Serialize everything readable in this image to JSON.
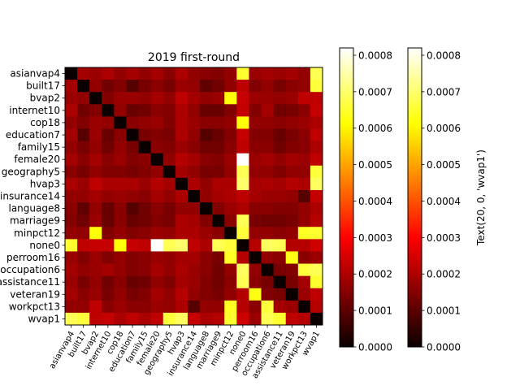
{
  "chart_data": {
    "type": "heatmap",
    "title": "2019 first-round",
    "categories": [
      "asianvap4",
      "built17",
      "bvap2",
      "internet10",
      "cop18",
      "education7",
      "family15",
      "female20",
      "geography5",
      "hvap3",
      "insurance14",
      "language8",
      "marriage9",
      "minpct12",
      "none0",
      "perroom16",
      "occupation6",
      "assistance11",
      "veteran19",
      "workpct13",
      "wvap1"
    ],
    "x_tick_labels": [
      "asianvap4",
      "built17",
      "bvap2",
      "internet10",
      "cop18",
      "education7",
      "family15",
      "female20",
      "geography5",
      "hvap3",
      "insurance14",
      "language8",
      "marriage9",
      "minpct12",
      "none0",
      "perroom16",
      "occupation6",
      "assistance11",
      "veteran19",
      "workpct13",
      "wvap1"
    ],
    "y_tick_labels": [
      "asianvap4",
      "built17",
      "bvap2",
      "internet10",
      "cop18",
      "education7",
      "family15",
      "female20",
      "geography5",
      "hvap3",
      "insurance14",
      "language8",
      "marriage9",
      "minpct12",
      "none0",
      "perroom16",
      "occupation6",
      "assistance11",
      "veteran19",
      "workpct13",
      "wvap1"
    ],
    "matrix": [
      [
        0.0,
        0.00018,
        0.00017,
        0.00019,
        0.00016,
        0.00018,
        0.00016,
        0.00018,
        0.00015,
        0.00019,
        0.00016,
        0.00015,
        0.00014,
        0.00016,
        0.00065,
        0.00017,
        0.00018,
        0.00017,
        0.00018,
        0.00016,
        0.00068
      ],
      [
        0.00018,
        0.0,
        0.00016,
        0.00012,
        0.00014,
        9e-05,
        0.00013,
        0.00015,
        0.00013,
        0.00017,
        0.00016,
        0.0001,
        0.00012,
        0.00016,
        0.00021,
        0.00014,
        0.00016,
        0.00013,
        0.00015,
        0.00016,
        0.00066
      ],
      [
        0.00017,
        0.00016,
        0.0,
        0.00014,
        0.00017,
        0.00017,
        0.00016,
        0.00018,
        0.00016,
        0.00021,
        0.00018,
        0.00016,
        0.00017,
        0.00062,
        0.00022,
        0.00017,
        0.00017,
        0.00016,
        0.00017,
        0.00021,
        0.00021
      ],
      [
        0.00019,
        0.00012,
        0.00014,
        0.0,
        0.00016,
        0.00011,
        0.00012,
        0.00015,
        0.00014,
        0.00019,
        0.00016,
        0.00011,
        0.00011,
        0.00014,
        0.00022,
        0.00014,
        0.00018,
        0.00012,
        0.00013,
        0.00015,
        0.00022
      ],
      [
        0.00016,
        0.00014,
        0.00017,
        0.00016,
        0.0,
        0.00015,
        0.00016,
        0.00017,
        0.00014,
        0.00019,
        0.00017,
        0.00015,
        0.00015,
        0.00016,
        0.00062,
        0.00016,
        0.00016,
        0.00015,
        0.00016,
        0.00017,
        0.00019
      ],
      [
        0.00018,
        9e-05,
        0.00017,
        0.00011,
        0.00015,
        0.0,
        0.00013,
        0.00014,
        0.00013,
        0.00019,
        0.00016,
        9e-05,
        0.00011,
        0.00014,
        0.00022,
        0.00014,
        0.00014,
        0.00011,
        0.00013,
        0.00015,
        0.00021
      ],
      [
        0.00016,
        0.00013,
        0.00016,
        0.00012,
        0.00016,
        0.00013,
        0.0,
        0.00015,
        0.00014,
        0.00017,
        0.00015,
        0.00012,
        0.00012,
        0.00015,
        0.00021,
        0.00015,
        0.00015,
        0.00012,
        0.00014,
        0.00015,
        0.00019
      ],
      [
        0.00018,
        0.00015,
        0.00018,
        0.00015,
        0.00017,
        0.00014,
        0.00015,
        0.0,
        0.00016,
        0.0002,
        0.00018,
        0.00015,
        0.00014,
        0.00017,
        0.00082,
        0.00017,
        0.00018,
        0.00016,
        0.00018,
        0.00017,
        0.00021
      ],
      [
        0.00015,
        0.00013,
        0.00016,
        0.00014,
        0.00014,
        0.00013,
        0.00014,
        0.00016,
        0.0,
        0.00018,
        0.00016,
        0.00013,
        0.00013,
        0.00016,
        0.00068,
        0.00016,
        0.00016,
        0.00014,
        0.00016,
        0.00016,
        0.00066
      ],
      [
        0.00019,
        0.00017,
        0.00021,
        0.00019,
        0.00019,
        0.00019,
        0.00017,
        0.0002,
        0.00018,
        0.0,
        0.00019,
        0.00016,
        0.00019,
        0.00019,
        0.0007,
        0.00018,
        0.00019,
        0.00018,
        0.0002,
        0.00019,
        0.00069
      ],
      [
        0.00016,
        0.00016,
        0.00018,
        0.00016,
        0.00017,
        0.00016,
        0.00015,
        0.00018,
        0.00016,
        0.00019,
        0.0,
        0.00016,
        0.00018,
        0.00019,
        0.00021,
        0.00018,
        0.00017,
        0.00017,
        0.00016,
        9e-05,
        0.00022
      ],
      [
        0.00015,
        0.0001,
        0.00016,
        0.00011,
        0.00015,
        9e-05,
        0.00012,
        0.00015,
        0.00013,
        0.00016,
        0.00016,
        0.0,
        0.00014,
        0.00017,
        0.00019,
        0.00015,
        0.00015,
        0.00014,
        0.00014,
        0.00016,
        0.00019
      ],
      [
        0.00014,
        0.00012,
        0.00017,
        0.00011,
        0.00015,
        0.00011,
        0.00012,
        0.00014,
        0.00013,
        0.00019,
        0.00018,
        0.00014,
        0.0,
        0.00015,
        0.00068,
        0.00013,
        0.00012,
        0.00012,
        0.00013,
        0.00016,
        0.0002
      ],
      [
        0.00016,
        0.00016,
        0.00062,
        0.00014,
        0.00016,
        0.00014,
        0.00015,
        0.00017,
        0.00016,
        0.00019,
        0.00019,
        0.00017,
        0.00015,
        0.0,
        0.00066,
        0.00016,
        0.00016,
        0.00015,
        0.00016,
        0.00064,
        0.00065
      ],
      [
        0.00065,
        0.00021,
        0.00022,
        0.00022,
        0.00062,
        0.00022,
        0.00021,
        0.00082,
        0.00068,
        0.0007,
        0.00021,
        0.00019,
        0.00068,
        0.00066,
        0.0,
        0.0002,
        0.00069,
        0.00068,
        0.0002,
        0.0002,
        0.00023
      ],
      [
        0.00017,
        0.00014,
        0.00017,
        0.00014,
        0.00016,
        0.00014,
        0.00015,
        0.00017,
        0.00016,
        0.00018,
        0.00018,
        0.00015,
        0.00013,
        0.00064,
        0.0002,
        0.0,
        0.00016,
        0.00015,
        0.00063,
        0.00015,
        0.00017
      ],
      [
        0.00018,
        0.00016,
        0.00017,
        0.00018,
        0.00016,
        0.00014,
        0.00015,
        0.00018,
        0.00016,
        0.00019,
        0.00017,
        0.00015,
        0.00012,
        0.00016,
        0.00069,
        0.00016,
        0.0,
        0.00013,
        0.00014,
        0.00066,
        0.00068
      ],
      [
        0.00017,
        0.00013,
        0.00016,
        0.00012,
        0.00015,
        0.00011,
        0.00012,
        0.00016,
        0.00014,
        0.00018,
        0.00017,
        0.00014,
        0.00012,
        0.00015,
        0.00068,
        0.00015,
        0.00013,
        0.0,
        0.00013,
        0.00018,
        0.00065
      ],
      [
        0.00018,
        0.00015,
        0.00017,
        0.00013,
        0.00016,
        0.00013,
        0.00014,
        0.00018,
        0.00016,
        0.0002,
        0.00016,
        0.00014,
        0.00013,
        0.00016,
        0.0002,
        0.00063,
        0.00014,
        0.00013,
        0.0,
        0.00017,
        0.00021
      ],
      [
        0.00016,
        0.00016,
        0.00021,
        0.00015,
        0.00017,
        0.00015,
        0.00015,
        0.00017,
        0.00016,
        0.00019,
        9e-05,
        0.00016,
        0.00016,
        0.00064,
        0.0002,
        0.00015,
        0.00066,
        0.00018,
        0.00017,
        0.0,
        0.0002
      ],
      [
        0.00068,
        0.00066,
        0.00021,
        0.00022,
        0.00019,
        0.00021,
        0.00019,
        0.00021,
        0.00066,
        0.00069,
        0.00022,
        0.00019,
        0.0002,
        0.00065,
        0.00023,
        0.00017,
        0.00068,
        0.00065,
        0.00021,
        0.0002,
        0.0
      ]
    ],
    "colormap": "hot",
    "vmin": 0.0,
    "vmax": 0.00082,
    "colorbars": [
      {
        "ticks": [
          "0.0000",
          "0.0001",
          "0.0002",
          "0.0003",
          "0.0004",
          "0.0005",
          "0.0006",
          "0.0007",
          "0.0008"
        ],
        "tick_values": [
          0,
          0.0001,
          0.0002,
          0.0003,
          0.0004,
          0.0005,
          0.0006,
          0.0007,
          0.0008
        ],
        "label": ""
      },
      {
        "ticks": [
          "0.0000",
          "0.0001",
          "0.0002",
          "0.0003",
          "0.0004",
          "0.0005",
          "0.0006",
          "0.0007",
          "0.0008"
        ],
        "tick_values": [
          0,
          0.0001,
          0.0002,
          0.0003,
          0.0004,
          0.0005,
          0.0006,
          0.0007,
          0.0008
        ],
        "label": "Text(20, 0, 'wvap1')"
      }
    ]
  }
}
